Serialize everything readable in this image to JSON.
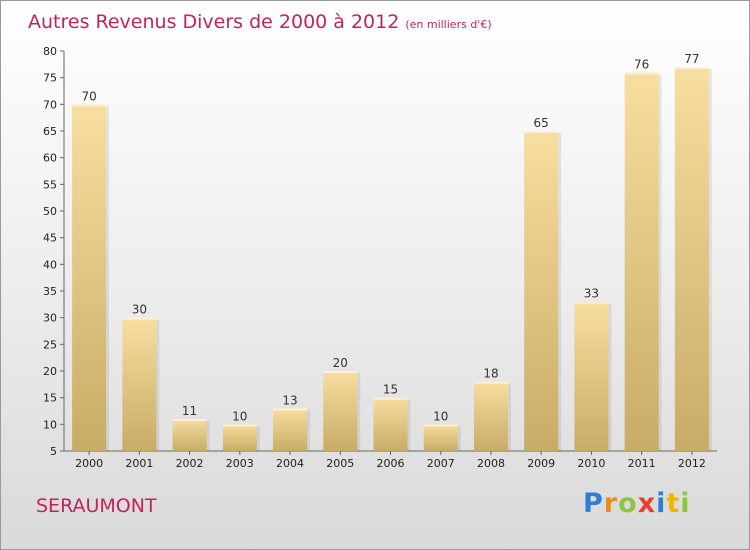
{
  "header": {
    "title": "Autres Revenus Divers de 2000 à 2012",
    "unit": "(en milliers d'€)"
  },
  "footer": {
    "commune": "SERAUMONT"
  },
  "logo": {
    "letters": [
      "P",
      "r",
      "o",
      "x",
      "i",
      "t",
      "i"
    ],
    "colors": [
      "#2e7fd4",
      "#f08a1c",
      "#8cc63f",
      "#e8402a",
      "#2e7fd4",
      "#f4b400",
      "#8cc63f"
    ]
  },
  "chart_data": {
    "type": "bar",
    "categories": [
      "2000",
      "2001",
      "2002",
      "2003",
      "2004",
      "2005",
      "2006",
      "2007",
      "2008",
      "2009",
      "2010",
      "2011",
      "2012"
    ],
    "values": [
      70,
      30,
      11,
      10,
      13,
      20,
      15,
      10,
      18,
      65,
      33,
      76,
      77
    ],
    "ylim": [
      5,
      80
    ],
    "yticks": [
      5,
      10,
      15,
      20,
      25,
      30,
      35,
      40,
      45,
      50,
      55,
      60,
      65,
      70,
      75,
      80
    ],
    "grid": false,
    "bar_color_top": "#f7dfa0",
    "bar_color_bottom": "#c8ab66"
  }
}
